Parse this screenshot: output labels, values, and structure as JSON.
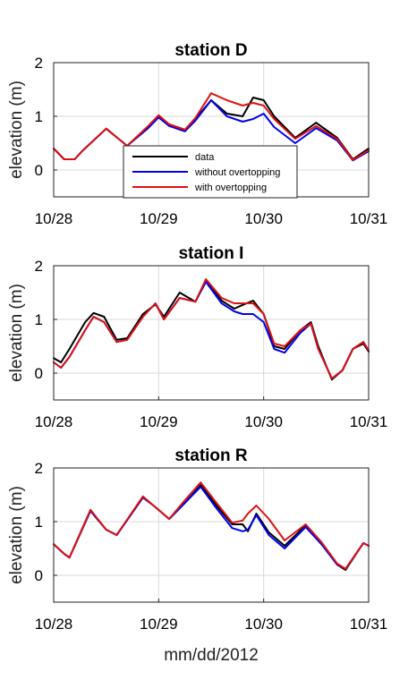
{
  "figure": {
    "xlabel": "mm/dd/2012"
  },
  "colors": {
    "data": "#000000",
    "without_overtopping": "#0000ee",
    "with_overtopping": "#dd1111",
    "grid": "#d8d8d8"
  },
  "legend": {
    "entries": [
      "data",
      "without overtopping",
      "with overtopping"
    ],
    "placement": "lower-center of first panel"
  },
  "chart_data": [
    {
      "type": "line",
      "title": "station D",
      "xlabel": "",
      "ylabel": "elevation (m)",
      "x_ticks": [
        "10/28",
        "10/29",
        "10/30",
        "10/31"
      ],
      "x_tick_values": [
        0,
        1,
        2,
        3
      ],
      "y_ticks": [
        "0",
        "1",
        "2"
      ],
      "ylim": [
        -0.5,
        2
      ],
      "xlim": [
        0,
        3
      ],
      "grid": true,
      "x": [
        0,
        0.25,
        0.5,
        0.75,
        1.0,
        1.25,
        1.5,
        1.75,
        2.0,
        2.25,
        2.5,
        2.75,
        3.0
      ],
      "series": [
        {
          "name": "data",
          "values": [
            [
              0,
              0.4
            ],
            [
              0.1,
              0.2
            ],
            [
              0.2,
              0.2
            ],
            [
              0.27,
              0.35
            ],
            [
              0.5,
              0.77
            ],
            [
              0.7,
              0.45
            ],
            [
              0.9,
              0.8
            ],
            [
              1.0,
              1.0
            ],
            [
              1.1,
              0.85
            ],
            [
              1.25,
              0.75
            ],
            [
              1.35,
              0.95
            ],
            [
              1.5,
              1.3
            ],
            [
              1.65,
              1.05
            ],
            [
              1.8,
              1.0
            ],
            [
              1.9,
              1.35
            ],
            [
              2.0,
              1.3
            ],
            [
              2.1,
              1.0
            ],
            [
              2.3,
              0.6
            ],
            [
              2.5,
              0.88
            ],
            [
              2.7,
              0.6
            ],
            [
              2.85,
              0.2
            ],
            [
              3.0,
              0.4
            ]
          ]
        },
        {
          "name": "without overtopping",
          "values": [
            [
              0,
              0.4
            ],
            [
              0.1,
              0.2
            ],
            [
              0.2,
              0.2
            ],
            [
              0.27,
              0.35
            ],
            [
              0.5,
              0.77
            ],
            [
              0.7,
              0.45
            ],
            [
              0.9,
              0.78
            ],
            [
              1.0,
              0.98
            ],
            [
              1.1,
              0.82
            ],
            [
              1.25,
              0.72
            ],
            [
              1.35,
              0.92
            ],
            [
              1.5,
              1.3
            ],
            [
              1.65,
              1.0
            ],
            [
              1.8,
              0.9
            ],
            [
              1.9,
              0.95
            ],
            [
              2.0,
              1.05
            ],
            [
              2.1,
              0.8
            ],
            [
              2.3,
              0.5
            ],
            [
              2.5,
              0.78
            ],
            [
              2.7,
              0.55
            ],
            [
              2.85,
              0.18
            ],
            [
              3.0,
              0.35
            ]
          ]
        },
        {
          "name": "with overtopping",
          "values": [
            [
              0,
              0.4
            ],
            [
              0.1,
              0.2
            ],
            [
              0.2,
              0.2
            ],
            [
              0.27,
              0.35
            ],
            [
              0.5,
              0.77
            ],
            [
              0.7,
              0.45
            ],
            [
              0.9,
              0.82
            ],
            [
              1.0,
              1.02
            ],
            [
              1.1,
              0.85
            ],
            [
              1.25,
              0.75
            ],
            [
              1.35,
              0.97
            ],
            [
              1.5,
              1.43
            ],
            [
              1.65,
              1.3
            ],
            [
              1.8,
              1.2
            ],
            [
              1.9,
              1.25
            ],
            [
              2.0,
              1.2
            ],
            [
              2.1,
              0.95
            ],
            [
              2.3,
              0.58
            ],
            [
              2.5,
              0.82
            ],
            [
              2.7,
              0.58
            ],
            [
              2.85,
              0.19
            ],
            [
              3.0,
              0.37
            ]
          ]
        }
      ]
    },
    {
      "type": "line",
      "title": "station I",
      "xlabel": "",
      "ylabel": "elevation (m)",
      "x_ticks": [
        "10/28",
        "10/29",
        "10/30",
        "10/31"
      ],
      "x_tick_values": [
        0,
        1,
        2,
        3
      ],
      "y_ticks": [
        "0",
        "1",
        "2"
      ],
      "ylim": [
        -0.5,
        2
      ],
      "xlim": [
        0,
        3
      ],
      "grid": true,
      "series": [
        {
          "name": "data",
          "values": [
            [
              0,
              0.28
            ],
            [
              0.07,
              0.2
            ],
            [
              0.15,
              0.45
            ],
            [
              0.3,
              0.95
            ],
            [
              0.38,
              1.12
            ],
            [
              0.48,
              1.05
            ],
            [
              0.6,
              0.62
            ],
            [
              0.7,
              0.65
            ],
            [
              0.85,
              1.1
            ],
            [
              0.97,
              1.28
            ],
            [
              1.05,
              1.05
            ],
            [
              1.2,
              1.5
            ],
            [
              1.35,
              1.33
            ],
            [
              1.45,
              1.73
            ],
            [
              1.6,
              1.35
            ],
            [
              1.72,
              1.2
            ],
            [
              1.8,
              1.27
            ],
            [
              1.9,
              1.35
            ],
            [
              2.0,
              1.1
            ],
            [
              2.1,
              0.5
            ],
            [
              2.2,
              0.45
            ],
            [
              2.35,
              0.8
            ],
            [
              2.45,
              0.95
            ],
            [
              2.52,
              0.5
            ],
            [
              2.65,
              -0.12
            ],
            [
              2.75,
              0.05
            ],
            [
              2.85,
              0.45
            ],
            [
              2.95,
              0.55
            ],
            [
              3.0,
              0.4
            ]
          ]
        },
        {
          "name": "without overtopping",
          "values": [
            [
              0,
              0.2
            ],
            [
              0.07,
              0.1
            ],
            [
              0.15,
              0.3
            ],
            [
              0.3,
              0.8
            ],
            [
              0.38,
              1.05
            ],
            [
              0.48,
              0.95
            ],
            [
              0.6,
              0.58
            ],
            [
              0.7,
              0.62
            ],
            [
              0.85,
              1.05
            ],
            [
              0.97,
              1.3
            ],
            [
              1.05,
              1.0
            ],
            [
              1.2,
              1.4
            ],
            [
              1.35,
              1.33
            ],
            [
              1.45,
              1.7
            ],
            [
              1.6,
              1.3
            ],
            [
              1.72,
              1.15
            ],
            [
              1.8,
              1.1
            ],
            [
              1.9,
              1.1
            ],
            [
              2.0,
              0.95
            ],
            [
              2.1,
              0.45
            ],
            [
              2.2,
              0.38
            ],
            [
              2.35,
              0.75
            ],
            [
              2.45,
              0.92
            ],
            [
              2.52,
              0.45
            ],
            [
              2.65,
              -0.1
            ],
            [
              2.75,
              0.05
            ],
            [
              2.85,
              0.45
            ],
            [
              2.95,
              0.58
            ],
            [
              3.0,
              0.42
            ]
          ]
        },
        {
          "name": "with overtopping",
          "values": [
            [
              0,
              0.2
            ],
            [
              0.07,
              0.1
            ],
            [
              0.15,
              0.3
            ],
            [
              0.3,
              0.8
            ],
            [
              0.38,
              1.05
            ],
            [
              0.48,
              0.95
            ],
            [
              0.6,
              0.58
            ],
            [
              0.7,
              0.62
            ],
            [
              0.85,
              1.05
            ],
            [
              0.97,
              1.3
            ],
            [
              1.05,
              1.0
            ],
            [
              1.2,
              1.4
            ],
            [
              1.35,
              1.33
            ],
            [
              1.45,
              1.75
            ],
            [
              1.6,
              1.4
            ],
            [
              1.72,
              1.3
            ],
            [
              1.8,
              1.3
            ],
            [
              1.9,
              1.3
            ],
            [
              2.0,
              1.1
            ],
            [
              2.1,
              0.55
            ],
            [
              2.2,
              0.5
            ],
            [
              2.35,
              0.8
            ],
            [
              2.45,
              0.92
            ],
            [
              2.52,
              0.45
            ],
            [
              2.65,
              -0.1
            ],
            [
              2.75,
              0.05
            ],
            [
              2.85,
              0.45
            ],
            [
              2.95,
              0.58
            ],
            [
              3.0,
              0.42
            ]
          ]
        }
      ]
    },
    {
      "type": "line",
      "title": "station R",
      "xlabel": "mm/dd/2012",
      "ylabel": "elevation (m)",
      "x_ticks": [
        "10/28",
        "10/29",
        "10/30",
        "10/31"
      ],
      "x_tick_values": [
        0,
        1,
        2,
        3
      ],
      "y_ticks": [
        "0",
        "1",
        "2"
      ],
      "ylim": [
        -0.5,
        2
      ],
      "xlim": [
        0,
        3
      ],
      "grid": true,
      "series": [
        {
          "name": "data",
          "values": [
            [
              0,
              0.58
            ],
            [
              0.1,
              0.4
            ],
            [
              0.15,
              0.33
            ],
            [
              0.35,
              1.2
            ],
            [
              0.5,
              0.85
            ],
            [
              0.6,
              0.75
            ],
            [
              0.85,
              1.45
            ],
            [
              0.95,
              1.3
            ],
            [
              1.1,
              1.05
            ],
            [
              1.25,
              1.35
            ],
            [
              1.4,
              1.68
            ],
            [
              1.55,
              1.3
            ],
            [
              1.7,
              0.95
            ],
            [
              1.8,
              0.95
            ],
            [
              1.85,
              0.82
            ],
            [
              1.93,
              1.15
            ],
            [
              2.05,
              0.8
            ],
            [
              2.2,
              0.55
            ],
            [
              2.4,
              0.93
            ],
            [
              2.55,
              0.6
            ],
            [
              2.7,
              0.2
            ],
            [
              2.78,
              0.1
            ],
            [
              2.95,
              0.6
            ],
            [
              3.0,
              0.55
            ]
          ]
        },
        {
          "name": "without overtopping",
          "values": [
            [
              0,
              0.58
            ],
            [
              0.1,
              0.4
            ],
            [
              0.15,
              0.33
            ],
            [
              0.35,
              1.2
            ],
            [
              0.5,
              0.85
            ],
            [
              0.6,
              0.75
            ],
            [
              0.85,
              1.45
            ],
            [
              0.95,
              1.3
            ],
            [
              1.1,
              1.05
            ],
            [
              1.25,
              1.35
            ],
            [
              1.4,
              1.65
            ],
            [
              1.55,
              1.25
            ],
            [
              1.7,
              0.88
            ],
            [
              1.8,
              0.82
            ],
            [
              1.85,
              0.85
            ],
            [
              1.93,
              1.12
            ],
            [
              2.05,
              0.75
            ],
            [
              2.2,
              0.5
            ],
            [
              2.4,
              0.9
            ],
            [
              2.55,
              0.58
            ],
            [
              2.7,
              0.2
            ],
            [
              2.78,
              0.12
            ],
            [
              2.95,
              0.6
            ],
            [
              3.0,
              0.55
            ]
          ]
        },
        {
          "name": "with overtopping",
          "values": [
            [
              0,
              0.58
            ],
            [
              0.1,
              0.4
            ],
            [
              0.15,
              0.33
            ],
            [
              0.35,
              1.22
            ],
            [
              0.5,
              0.85
            ],
            [
              0.6,
              0.75
            ],
            [
              0.85,
              1.47
            ],
            [
              0.95,
              1.3
            ],
            [
              1.1,
              1.05
            ],
            [
              1.25,
              1.4
            ],
            [
              1.4,
              1.73
            ],
            [
              1.55,
              1.35
            ],
            [
              1.7,
              0.98
            ],
            [
              1.8,
              1.02
            ],
            [
              1.85,
              1.15
            ],
            [
              1.93,
              1.3
            ],
            [
              2.05,
              1.05
            ],
            [
              2.2,
              0.65
            ],
            [
              2.4,
              0.95
            ],
            [
              2.55,
              0.62
            ],
            [
              2.7,
              0.22
            ],
            [
              2.78,
              0.12
            ],
            [
              2.95,
              0.6
            ],
            [
              3.0,
              0.55
            ]
          ]
        }
      ]
    }
  ]
}
